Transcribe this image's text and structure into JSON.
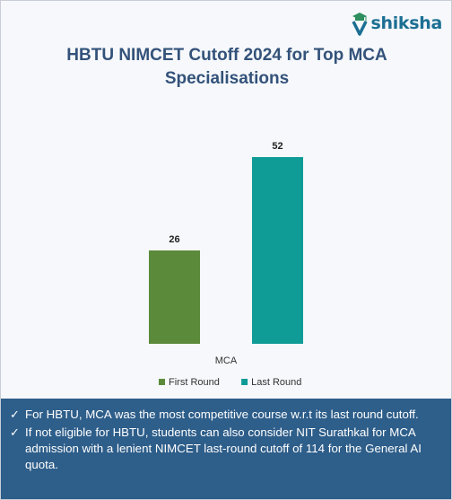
{
  "brand": {
    "name": "shiksha",
    "logo_icon": "graduation-cap-s-icon",
    "color": "#1c6f93"
  },
  "title": "HBTU NIMCET Cutoff 2024 for Top MCA Specialisations",
  "chart_data": {
    "type": "bar",
    "categories": [
      "MCA"
    ],
    "series": [
      {
        "name": "First Round",
        "values": [
          26
        ],
        "color": "#5b8a3a"
      },
      {
        "name": "Last Round",
        "values": [
          52
        ],
        "color": "#0f9b96"
      }
    ],
    "title": "HBTU NIMCET Cutoff 2024 for Top MCA Specialisations",
    "xlabel": "",
    "ylabel": "",
    "ylim": [
      0,
      60
    ],
    "grid": false,
    "legend": "bottom"
  },
  "notes": [
    "For HBTU, MCA was the most competitive course w.r.t its last round cutoff.",
    "If not eligible for HBTU, students can also consider NIT Surathkal for MCA admission with a lenient NIMCET last-round cutoff of 114 for the General AI quota."
  ],
  "colors": {
    "title": "#33527a",
    "footer_bg": "#2e5e8a"
  }
}
